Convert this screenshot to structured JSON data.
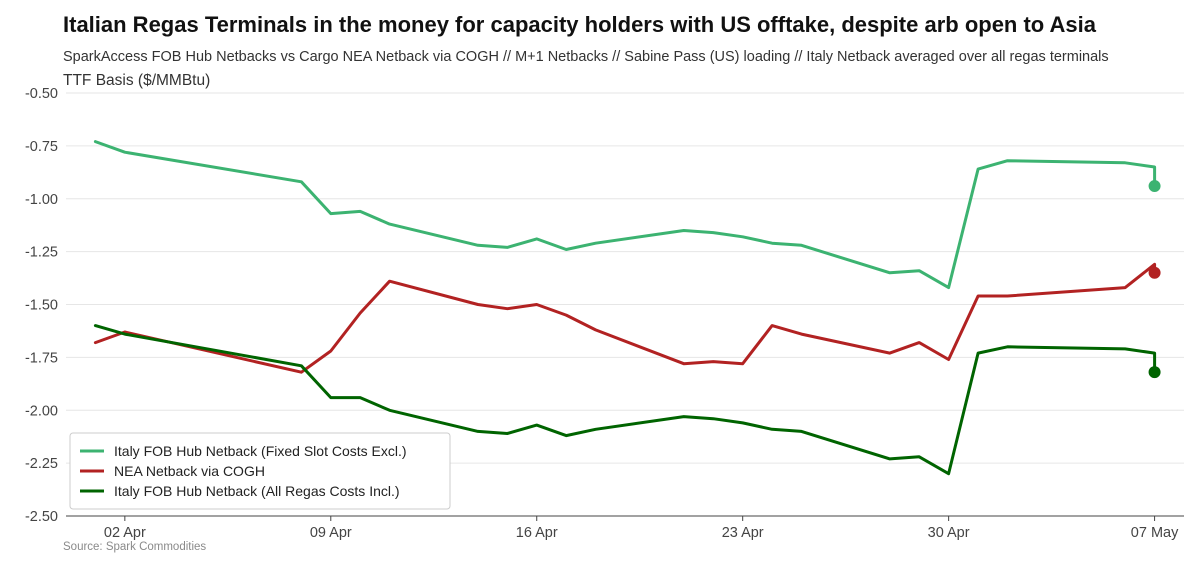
{
  "chart_data": {
    "type": "line",
    "title": "Italian Regas Terminals in the money for capacity holders with US offtake, despite arb open to Asia",
    "subtitle": "SparkAccess FOB Hub Netbacks vs Cargo NEA Netback via COGH // M+1 Netbacks // Sabine Pass (US) loading // Italy Netback averaged over all regas terminals",
    "ylabel": "TTF Basis ($/MMBtu)",
    "source": "Source: Spark Commodities",
    "ylim": [
      -2.5,
      -0.5
    ],
    "yticks": [
      -0.5,
      -0.75,
      -1.0,
      -1.25,
      -1.5,
      -1.75,
      -2.0,
      -2.25,
      -2.5
    ],
    "ytick_labels": [
      "-0.50",
      "-0.75",
      "-1.00",
      "-1.25",
      "-1.50",
      "-1.75",
      "-2.00",
      "-2.25",
      "-2.50"
    ],
    "xlim": [
      "2024-03-31",
      "2024-05-08"
    ],
    "xticks": [
      "2024-04-02",
      "2024-04-09",
      "2024-04-16",
      "2024-04-23",
      "2024-04-30",
      "2024-05-07"
    ],
    "xtick_labels": [
      "02 Apr",
      "09 Apr",
      "16 Apr",
      "23 Apr",
      "30 Apr",
      "07 May"
    ],
    "grid": "horizontal",
    "legend_position": "bottom-left",
    "series": [
      {
        "name": "Italy FOB Hub Netback (Fixed Slot Costs Excl.)",
        "color": "#3cb371",
        "x": [
          "2024-04-01",
          "2024-04-02",
          "2024-04-08",
          "2024-04-09",
          "2024-04-10",
          "2024-04-11",
          "2024-04-14",
          "2024-04-15",
          "2024-04-16",
          "2024-04-17",
          "2024-04-18",
          "2024-04-21",
          "2024-04-22",
          "2024-04-23",
          "2024-04-24",
          "2024-04-25",
          "2024-04-28",
          "2024-04-29",
          "2024-04-30",
          "2024-05-01",
          "2024-05-02",
          "2024-05-06",
          "2024-05-07",
          "2024-05-07"
        ],
        "y": [
          -0.73,
          -0.78,
          -0.92,
          -1.07,
          -1.06,
          -1.12,
          -1.22,
          -1.23,
          -1.19,
          -1.24,
          -1.21,
          -1.15,
          -1.16,
          -1.18,
          -1.21,
          -1.22,
          -1.35,
          -1.34,
          -1.42,
          -0.86,
          -0.82,
          -0.83,
          -0.85,
          -0.94
        ]
      },
      {
        "name": "NEA Netback via COGH",
        "color": "#b22222",
        "x": [
          "2024-04-01",
          "2024-04-02",
          "2024-04-08",
          "2024-04-09",
          "2024-04-10",
          "2024-04-11",
          "2024-04-14",
          "2024-04-15",
          "2024-04-16",
          "2024-04-17",
          "2024-04-18",
          "2024-04-21",
          "2024-04-22",
          "2024-04-23",
          "2024-04-24",
          "2024-04-25",
          "2024-04-28",
          "2024-04-29",
          "2024-04-30",
          "2024-05-01",
          "2024-05-02",
          "2024-05-06",
          "2024-05-07",
          "2024-05-07"
        ],
        "y": [
          -1.68,
          -1.63,
          -1.82,
          -1.72,
          -1.54,
          -1.39,
          -1.5,
          -1.52,
          -1.5,
          -1.55,
          -1.62,
          -1.78,
          -1.77,
          -1.78,
          -1.6,
          -1.64,
          -1.73,
          -1.68,
          -1.76,
          -1.46,
          -1.46,
          -1.42,
          -1.31,
          -1.35
        ]
      },
      {
        "name": "Italy FOB Hub Netback (All Regas Costs Incl.)",
        "color": "#006400",
        "x": [
          "2024-04-01",
          "2024-04-02",
          "2024-04-08",
          "2024-04-09",
          "2024-04-10",
          "2024-04-11",
          "2024-04-14",
          "2024-04-15",
          "2024-04-16",
          "2024-04-17",
          "2024-04-18",
          "2024-04-21",
          "2024-04-22",
          "2024-04-23",
          "2024-04-24",
          "2024-04-25",
          "2024-04-28",
          "2024-04-29",
          "2024-04-30",
          "2024-05-01",
          "2024-05-02",
          "2024-05-06",
          "2024-05-07",
          "2024-05-07"
        ],
        "y": [
          -1.6,
          -1.64,
          -1.79,
          -1.94,
          -1.94,
          -2.0,
          -2.1,
          -2.11,
          -2.07,
          -2.12,
          -2.09,
          -2.03,
          -2.04,
          -2.06,
          -2.09,
          -2.1,
          -2.23,
          -2.22,
          -2.3,
          -1.73,
          -1.7,
          -1.71,
          -1.73,
          -1.82
        ]
      }
    ]
  }
}
